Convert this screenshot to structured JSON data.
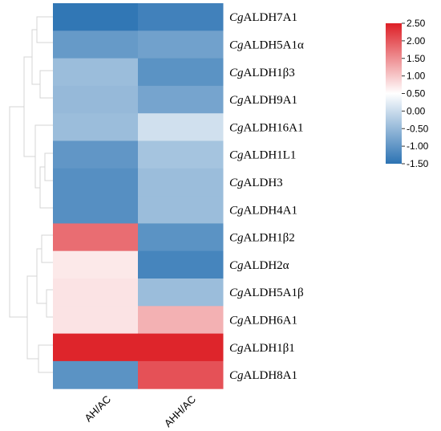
{
  "chart_data": {
    "type": "heatmap",
    "columns": [
      "AH/AC",
      "AHH/AC"
    ],
    "rows": [
      {
        "prefix": "Cg",
        "name": "ALDH7A1",
        "values": [
          -1.45,
          -1.3
        ]
      },
      {
        "prefix": "Cg",
        "name": "ALDH5A1α",
        "values": [
          -0.95,
          -0.85
        ]
      },
      {
        "prefix": "Cg",
        "name": "ALDH1β3",
        "values": [
          -0.45,
          -1.05
        ]
      },
      {
        "prefix": "Cg",
        "name": "ALDH9A1",
        "values": [
          -0.5,
          -0.8
        ]
      },
      {
        "prefix": "Cg",
        "name": "ALDH16A1",
        "values": [
          -0.45,
          0.05
        ]
      },
      {
        "prefix": "Cg",
        "name": "ALDH1L1",
        "values": [
          -1.0,
          -0.35
        ]
      },
      {
        "prefix": "Cg",
        "name": "ALDH3",
        "values": [
          -1.1,
          -0.45
        ]
      },
      {
        "prefix": "Cg",
        "name": "ALDH4A1",
        "values": [
          -1.1,
          -0.45
        ]
      },
      {
        "prefix": "Cg",
        "name": "ALDH1β2",
        "values": [
          1.8,
          -1.05
        ]
      },
      {
        "prefix": "Cg",
        "name": "ALDH2α",
        "values": [
          0.7,
          -1.25
        ]
      },
      {
        "prefix": "Cg",
        "name": "ALDH5A1β",
        "values": [
          0.75,
          -0.45
        ]
      },
      {
        "prefix": "Cg",
        "name": "ALDH6A1",
        "values": [
          0.75,
          1.2
        ]
      },
      {
        "prefix": "Cg",
        "name": "ALDH1β1",
        "values": [
          2.45,
          2.45
        ]
      },
      {
        "prefix": "Cg",
        "name": "ALDH8A1",
        "values": [
          -1.05,
          2.05
        ]
      }
    ],
    "color_scale": {
      "min": -1.5,
      "mid": 0.5,
      "max": 2.5,
      "low_color": "#2c73b3",
      "mid_color": "#ffffff",
      "high_color": "#dd1f26",
      "ticks": [
        "2.50",
        "2.00",
        "1.50",
        "1.00",
        "0.50",
        "0.00",
        "-0.50",
        "-1.00",
        "-1.50"
      ]
    },
    "legend_placement": "top-right",
    "row_dendrogram": "left"
  }
}
